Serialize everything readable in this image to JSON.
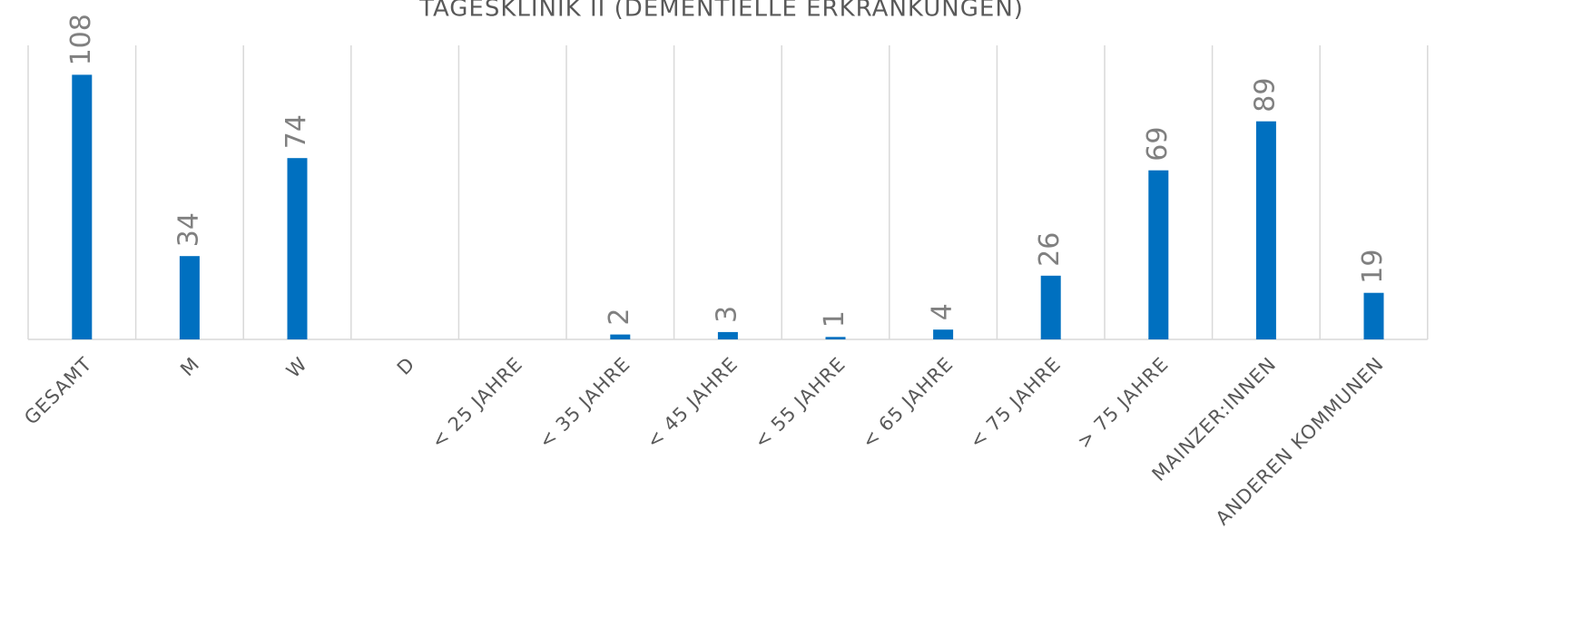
{
  "chart_data": {
    "type": "bar",
    "title": "TAGESKLINIK II (DEMENTIELLE ERKRANKUNGEN)",
    "categories": [
      "GESAMT",
      "M",
      "W",
      "D",
      "< 25 JAHRE",
      "< 35 JAHRE",
      "< 45 JAHRE",
      "< 55 JAHRE",
      "< 65 JAHRE",
      "< 75 JAHRE",
      "> 75 JAHRE",
      "MAINZER:INNEN",
      "ANDEREN KOMMUNEN"
    ],
    "values": [
      108,
      34,
      74,
      null,
      null,
      2,
      3,
      1,
      4,
      26,
      69,
      89,
      19
    ],
    "color": "#0070c0",
    "ylim": [
      0,
      120
    ],
    "grid": true
  }
}
